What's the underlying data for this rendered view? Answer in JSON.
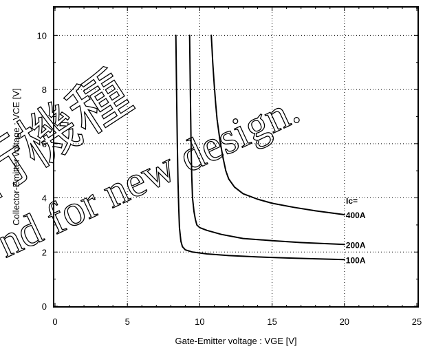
{
  "chart_data": {
    "type": "line",
    "xlabel": "Gate-Emitter  voltage  :  VGE [V]",
    "ylabel": "Collector-Emitter  voltage  :   VCE [V]",
    "xlim": [
      0,
      25
    ],
    "ylim": [
      0,
      11
    ],
    "x_ticks": [
      0,
      5,
      10,
      15,
      20,
      25
    ],
    "y_ticks": [
      0,
      2,
      4,
      6,
      8,
      10
    ],
    "x_tick_labels": [
      "0",
      "5",
      "10",
      "15",
      "20",
      "25"
    ],
    "y_tick_labels": [
      "0",
      "2",
      "4",
      "6",
      "8",
      "10"
    ],
    "grid": true,
    "legend_title": "Ic=",
    "series": [
      {
        "name": "100A",
        "x": [
          8.35,
          8.4,
          8.45,
          8.5,
          8.55,
          8.6,
          8.7,
          8.8,
          9.0,
          9.5,
          10.5,
          12.0,
          14.0,
          16.0,
          18.0,
          20.0
        ],
        "y": [
          10.0,
          8.0,
          6.0,
          4.6,
          3.6,
          2.9,
          2.4,
          2.2,
          2.08,
          2.0,
          1.93,
          1.87,
          1.82,
          1.78,
          1.75,
          1.72
        ]
      },
      {
        "name": "200A",
        "x": [
          9.3,
          9.35,
          9.4,
          9.45,
          9.5,
          9.6,
          9.7,
          9.8,
          10.0,
          10.5,
          11.5,
          13.0,
          15.0,
          17.0,
          20.0
        ],
        "y": [
          10.0,
          8.0,
          6.0,
          4.8,
          4.0,
          3.5,
          3.2,
          3.0,
          2.9,
          2.8,
          2.65,
          2.5,
          2.42,
          2.35,
          2.28
        ]
      },
      {
        "name": "400A",
        "x": [
          10.8,
          10.85,
          10.9,
          11.0,
          11.1,
          11.2,
          11.4,
          11.6,
          11.8,
          12.0,
          12.4,
          13.0,
          14.0,
          15.0,
          16.5,
          18.0,
          20.0
        ],
        "y": [
          10.0,
          9.5,
          9.0,
          8.2,
          7.5,
          6.9,
          6.1,
          5.5,
          5.0,
          4.7,
          4.4,
          4.15,
          3.95,
          3.8,
          3.65,
          3.52,
          3.38
        ]
      }
    ],
    "watermark_lines": [
      "行機種",
      "nd for new design."
    ]
  }
}
